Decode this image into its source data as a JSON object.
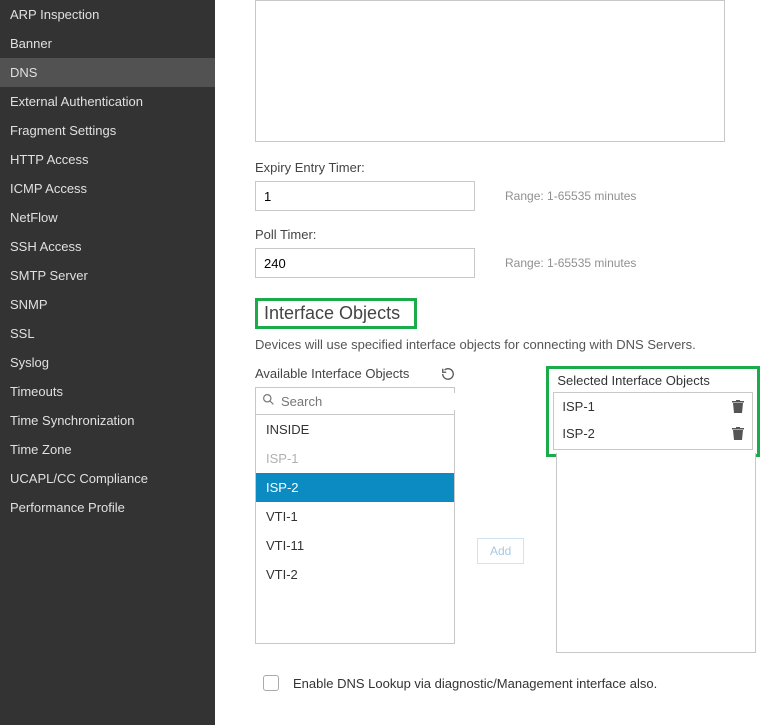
{
  "sidebar": {
    "items": [
      {
        "label": "ARP Inspection",
        "active": false
      },
      {
        "label": "Banner",
        "active": false
      },
      {
        "label": "DNS",
        "active": true
      },
      {
        "label": "External Authentication",
        "active": false
      },
      {
        "label": "Fragment Settings",
        "active": false
      },
      {
        "label": "HTTP Access",
        "active": false
      },
      {
        "label": "ICMP Access",
        "active": false
      },
      {
        "label": "NetFlow",
        "active": false
      },
      {
        "label": "SSH Access",
        "active": false
      },
      {
        "label": "SMTP Server",
        "active": false
      },
      {
        "label": "SNMP",
        "active": false
      },
      {
        "label": "SSL",
        "active": false
      },
      {
        "label": "Syslog",
        "active": false
      },
      {
        "label": "Timeouts",
        "active": false
      },
      {
        "label": "Time Synchronization",
        "active": false
      },
      {
        "label": "Time Zone",
        "active": false
      },
      {
        "label": "UCAPL/CC Compliance",
        "active": false
      },
      {
        "label": "Performance Profile",
        "active": false
      }
    ]
  },
  "expiry": {
    "label": "Expiry Entry Timer:",
    "value": "1",
    "range": "Range: 1-65535 minutes"
  },
  "poll": {
    "label": "Poll Timer:",
    "value": "240",
    "range": "Range: 1-65535 minutes"
  },
  "section": {
    "title": "Interface Objects",
    "description": "Devices will use specified interface objects for connecting with DNS Servers."
  },
  "available": {
    "header": "Available Interface Objects",
    "search_placeholder": "Search",
    "items": [
      {
        "label": "INSIDE",
        "state": "normal"
      },
      {
        "label": "ISP-1",
        "state": "dimmed"
      },
      {
        "label": "ISP-2",
        "state": "selected"
      },
      {
        "label": "VTI-1",
        "state": "normal"
      },
      {
        "label": "VTI-11",
        "state": "normal"
      },
      {
        "label": "VTI-2",
        "state": "normal"
      }
    ]
  },
  "add_button": "Add",
  "selected": {
    "header": "Selected Interface Objects",
    "items": [
      {
        "label": "ISP-1"
      },
      {
        "label": "ISP-2"
      }
    ]
  },
  "checkbox": {
    "label": "Enable DNS Lookup via diagnostic/Management interface also.",
    "checked": false
  },
  "colors": {
    "sidebar_bg": "#333333",
    "sidebar_active": "#525252",
    "highlight": "#1aab4a",
    "list_selected": "#0c8bc3"
  }
}
